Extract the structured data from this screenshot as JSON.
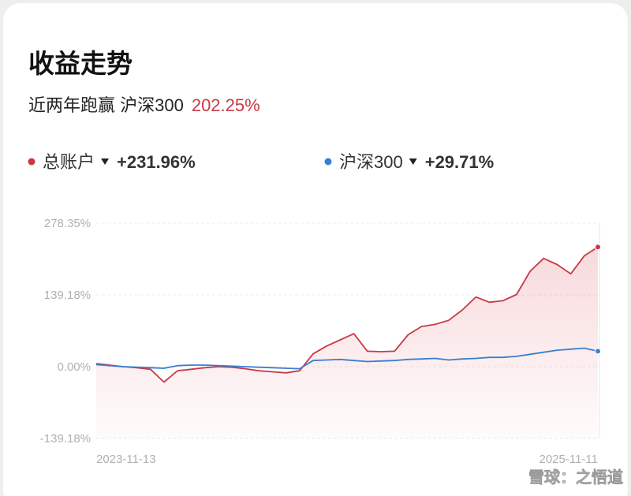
{
  "header": {
    "title": "收益走势",
    "subtitle": "近两年跑赢 沪深300",
    "subtitle_value": "202.25%"
  },
  "chart_data": {
    "type": "line",
    "categories": [
      "2023-11-13",
      null,
      null,
      null,
      null,
      null,
      null,
      null,
      null,
      null,
      null,
      null,
      null,
      null,
      null,
      null,
      null,
      null,
      null,
      null,
      null,
      null,
      null,
      null,
      null,
      null,
      null,
      null,
      null,
      null,
      null,
      null,
      null,
      null,
      null,
      null,
      null,
      "2025-11-11"
    ],
    "series": [
      {
        "name": "总账户",
        "color": "#c83a46",
        "summary": "+231.96%",
        "values": [
          6,
          3,
          0,
          -2,
          -5,
          -30,
          -8,
          -5,
          -2,
          0,
          -1,
          -4,
          -8,
          -10,
          -12,
          -8,
          25,
          40,
          52,
          64,
          30,
          29,
          30,
          62,
          78,
          82,
          90,
          110,
          135,
          125,
          128,
          140,
          185,
          210,
          198,
          180,
          215,
          232
        ]
      },
      {
        "name": "沪深300",
        "color": "#3a7fd0",
        "summary": "+29.71%",
        "values": [
          4,
          2,
          0,
          -1,
          -2,
          -3,
          2,
          3,
          3,
          2,
          1,
          0,
          -1,
          -2,
          -3,
          -4,
          12,
          13,
          14,
          12,
          10,
          11,
          12,
          14,
          15,
          16,
          13,
          15,
          16,
          18,
          18,
          20,
          24,
          28,
          32,
          34,
          36,
          30
        ]
      }
    ],
    "ylim": [
      -139.18,
      278.35
    ],
    "yticks": [
      {
        "value": 278.35,
        "label": "278.35%"
      },
      {
        "value": 139.18,
        "label": "139.18%"
      },
      {
        "value": 0,
        "label": "0.00%"
      },
      {
        "value": -139.18,
        "label": "-139.18%"
      }
    ],
    "grid": true
  },
  "watermark": "雪球：之悟道"
}
